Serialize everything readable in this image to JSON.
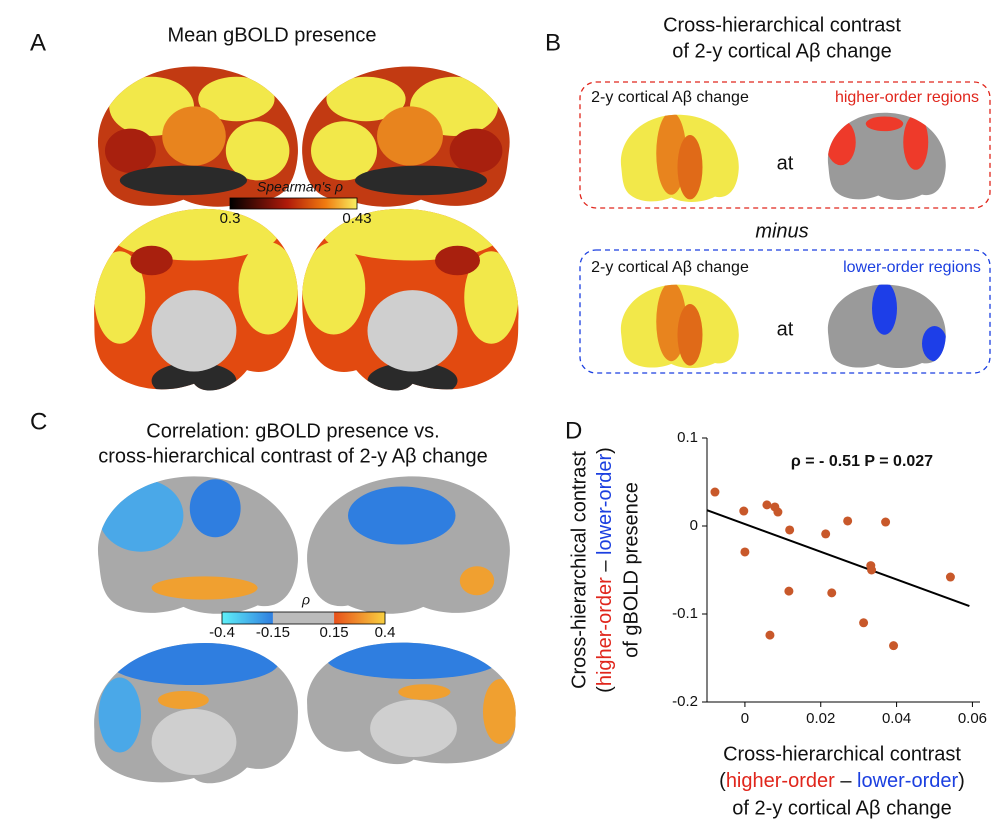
{
  "panel_a": {
    "letter": "A",
    "title": "Mean gBOLD presence",
    "colorbar_label": "Spearman's ρ",
    "colorbar_ticks": [
      0.3,
      0.43
    ]
  },
  "panel_b": {
    "letter": "B",
    "title_lines": [
      "Cross-hierarchical contrast",
      "of 2-y cortical Aβ change"
    ],
    "top_box": {
      "left_label": "2-y cortical Aβ change",
      "right_label": "higher-order regions",
      "joiner": "at"
    },
    "operator": "minus",
    "bottom_box": {
      "left_label": "2-y cortical Aβ change",
      "right_label": "lower-order regions",
      "joiner": "at"
    }
  },
  "panel_c": {
    "letter": "C",
    "title_lines": [
      "Correlation: gBOLD presence vs.",
      "cross-hierarchical contrast of 2-y Aβ change"
    ],
    "colorbar_label": "ρ",
    "colorbar_ticks": [
      -0.4,
      -0.15,
      0.15,
      0.4
    ]
  },
  "chart_data": {
    "type": "scatter",
    "letter": "D",
    "annotation": [
      "ρ = - 0.51",
      "P = 0.027"
    ],
    "x_label": {
      "line1": "Cross-hierarchical contrast",
      "line2": [
        "(",
        "higher-order",
        " – ",
        "lower-order",
        ")"
      ],
      "line3": "of 2-y cortical Aβ change"
    },
    "y_label": {
      "line1": "Cross-hierarchical contrast",
      "line2": [
        "(",
        "higher-order",
        " – ",
        "lower-order",
        ")"
      ],
      "line3": "of gBOLD presence"
    },
    "x": [
      -0.0079,
      -0.0003,
      0,
      0.0058,
      0.0079,
      0.0087,
      0.0118,
      0.0116,
      0.0066,
      0.0213,
      0.0229,
      0.0271,
      0.0332,
      0.0334,
      0.0371,
      0.0313,
      0.0392,
      0.0542
    ],
    "values": [
      0.0386,
      0.017,
      -0.0295,
      0.024,
      0.0216,
      0.0159,
      -0.0045,
      -0.074,
      -0.124,
      -0.009,
      -0.076,
      0.0057,
      -0.045,
      -0.05,
      0.0045,
      -0.11,
      -0.136,
      -0.058
    ],
    "color": "#c8582a",
    "fit": {
      "x": [
        -0.01,
        0.0592
      ],
      "y": [
        0.018,
        -0.091
      ],
      "color": "#000000"
    },
    "xlim": [
      -0.01,
      0.062
    ],
    "xticks": [
      0,
      0.02,
      0.04,
      0.06
    ],
    "ylim": [
      -0.2,
      0.1
    ],
    "yticks": [
      -0.2,
      -0.1,
      0,
      0.1
    ]
  }
}
